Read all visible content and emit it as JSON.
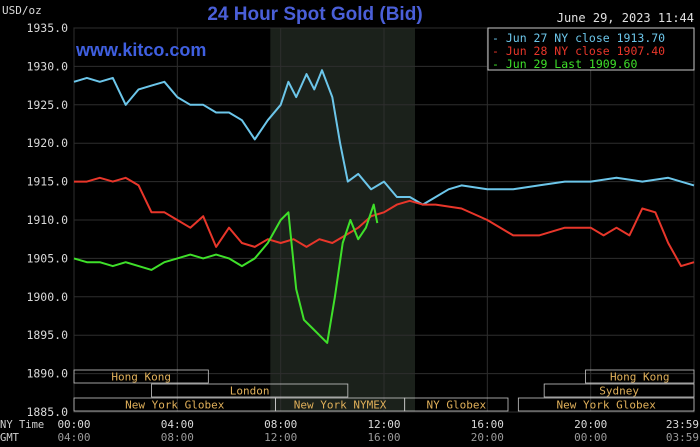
{
  "chart_data": {
    "type": "line",
    "title": "24 Hour Spot Gold (Bid)",
    "timestamp": "June 29, 2023 11:44",
    "watermark": "www.kitco.com",
    "y_unit": "USD/oz",
    "ylim": [
      1885,
      1935
    ],
    "y_ticks": [
      "1885.0",
      "1890.0",
      "1895.0",
      "1900.0",
      "1905.0",
      "1910.0",
      "1915.0",
      "1920.0",
      "1925.0",
      "1930.0",
      "1935.0"
    ],
    "xlim": [
      0,
      24
    ],
    "x_axis_rows": [
      {
        "label": "NY Time",
        "ticks": [
          "00:00",
          "04:00",
          "08:00",
          "12:00",
          "16:00",
          "20:00",
          "23:59"
        ]
      },
      {
        "label": "GMT",
        "ticks": [
          "04:00",
          "08:00",
          "12:00",
          "16:00",
          "20:00",
          "00:00",
          "03:59"
        ]
      }
    ],
    "sessions": [
      {
        "name": "Hong Kong",
        "row": 0,
        "start": 0,
        "end": 5.2
      },
      {
        "name": "London",
        "row": 1,
        "start": 3,
        "end": 10.6
      },
      {
        "name": "New York Globex",
        "row": 2,
        "start": 0,
        "end": 7.8
      },
      {
        "name": "New York NYMEX",
        "row": 2,
        "start": 7.8,
        "end": 12.8
      },
      {
        "name": "NY Globex",
        "row": 2,
        "start": 12.8,
        "end": 16.8
      },
      {
        "name": "Hong Kong",
        "row": 0,
        "start": 19.8,
        "end": 24
      },
      {
        "name": "Sydney",
        "row": 1,
        "start": 18.2,
        "end": 24
      },
      {
        "name": "New York Globex",
        "row": 2,
        "start": 17.2,
        "end": 24
      }
    ],
    "shaded_region": {
      "start": 7.6,
      "end": 13.2
    },
    "series": [
      {
        "name": "Jun 27 NY close 1913.70",
        "color": "#6cc6ea",
        "x": [
          0,
          0.5,
          1,
          1.5,
          2,
          2.5,
          3,
          3.5,
          4,
          4.5,
          5,
          5.5,
          6,
          6.5,
          7,
          7.5,
          8,
          8.3,
          8.6,
          9,
          9.3,
          9.6,
          10,
          10.3,
          10.6,
          11,
          11.5,
          12,
          12.5,
          13,
          13.5,
          14,
          14.5,
          15,
          16,
          17,
          18,
          19,
          20,
          21,
          22,
          23,
          24
        ],
        "values": [
          1928,
          1928.5,
          1928,
          1928.5,
          1925,
          1927,
          1927.5,
          1928,
          1926,
          1925,
          1925,
          1924,
          1924,
          1923,
          1920.5,
          1923,
          1925,
          1928,
          1926,
          1929,
          1927,
          1929.5,
          1926,
          1920,
          1915,
          1916,
          1914,
          1915,
          1913,
          1913,
          1912,
          1913,
          1914,
          1914.5,
          1914,
          1914,
          1914.5,
          1915,
          1915,
          1915.5,
          1915,
          1915.5,
          1914.5
        ]
      },
      {
        "name": "Jun 28 NY close 1907.40",
        "color": "#e8362a",
        "x": [
          0,
          0.5,
          1,
          1.5,
          2,
          2.5,
          3,
          3.5,
          4,
          4.5,
          5,
          5.5,
          6,
          6.5,
          7,
          7.5,
          8,
          8.5,
          9,
          9.5,
          10,
          10.5,
          11,
          11.5,
          12,
          12.5,
          13,
          13.5,
          14,
          15,
          16,
          17,
          18,
          19,
          20,
          20.5,
          21,
          21.5,
          22,
          22.5,
          23,
          23.5,
          24
        ],
        "values": [
          1915,
          1915,
          1915.5,
          1915,
          1915.5,
          1914.5,
          1911,
          1911,
          1910,
          1909,
          1910.5,
          1906.5,
          1909,
          1907,
          1906.5,
          1907.5,
          1907,
          1907.5,
          1906.5,
          1907.5,
          1907,
          1908,
          1909,
          1910.5,
          1911,
          1912,
          1912.5,
          1912,
          1912,
          1911.5,
          1910,
          1908,
          1908,
          1909,
          1909,
          1908,
          1909,
          1908,
          1911.5,
          1911,
          1907,
          1904,
          1904.5
        ]
      },
      {
        "name": "Jun 29 Last 1909.60",
        "color": "#3fe02a",
        "x": [
          0,
          0.5,
          1,
          1.5,
          2,
          2.5,
          3,
          3.5,
          4,
          4.5,
          5,
          5.5,
          6,
          6.5,
          7,
          7.5,
          8,
          8.3,
          8.6,
          8.9,
          9.2,
          9.5,
          9.8,
          10.1,
          10.4,
          10.7,
          11,
          11.3,
          11.6,
          11.74
        ],
        "values": [
          1905,
          1904.5,
          1904.5,
          1904,
          1904.5,
          1904,
          1903.5,
          1904.5,
          1905,
          1905.5,
          1905,
          1905.5,
          1905,
          1904,
          1905,
          1907,
          1910,
          1911,
          1901,
          1897,
          1896,
          1895,
          1894,
          1900,
          1907,
          1910,
          1907.5,
          1909,
          1912,
          1909.6
        ]
      }
    ]
  }
}
